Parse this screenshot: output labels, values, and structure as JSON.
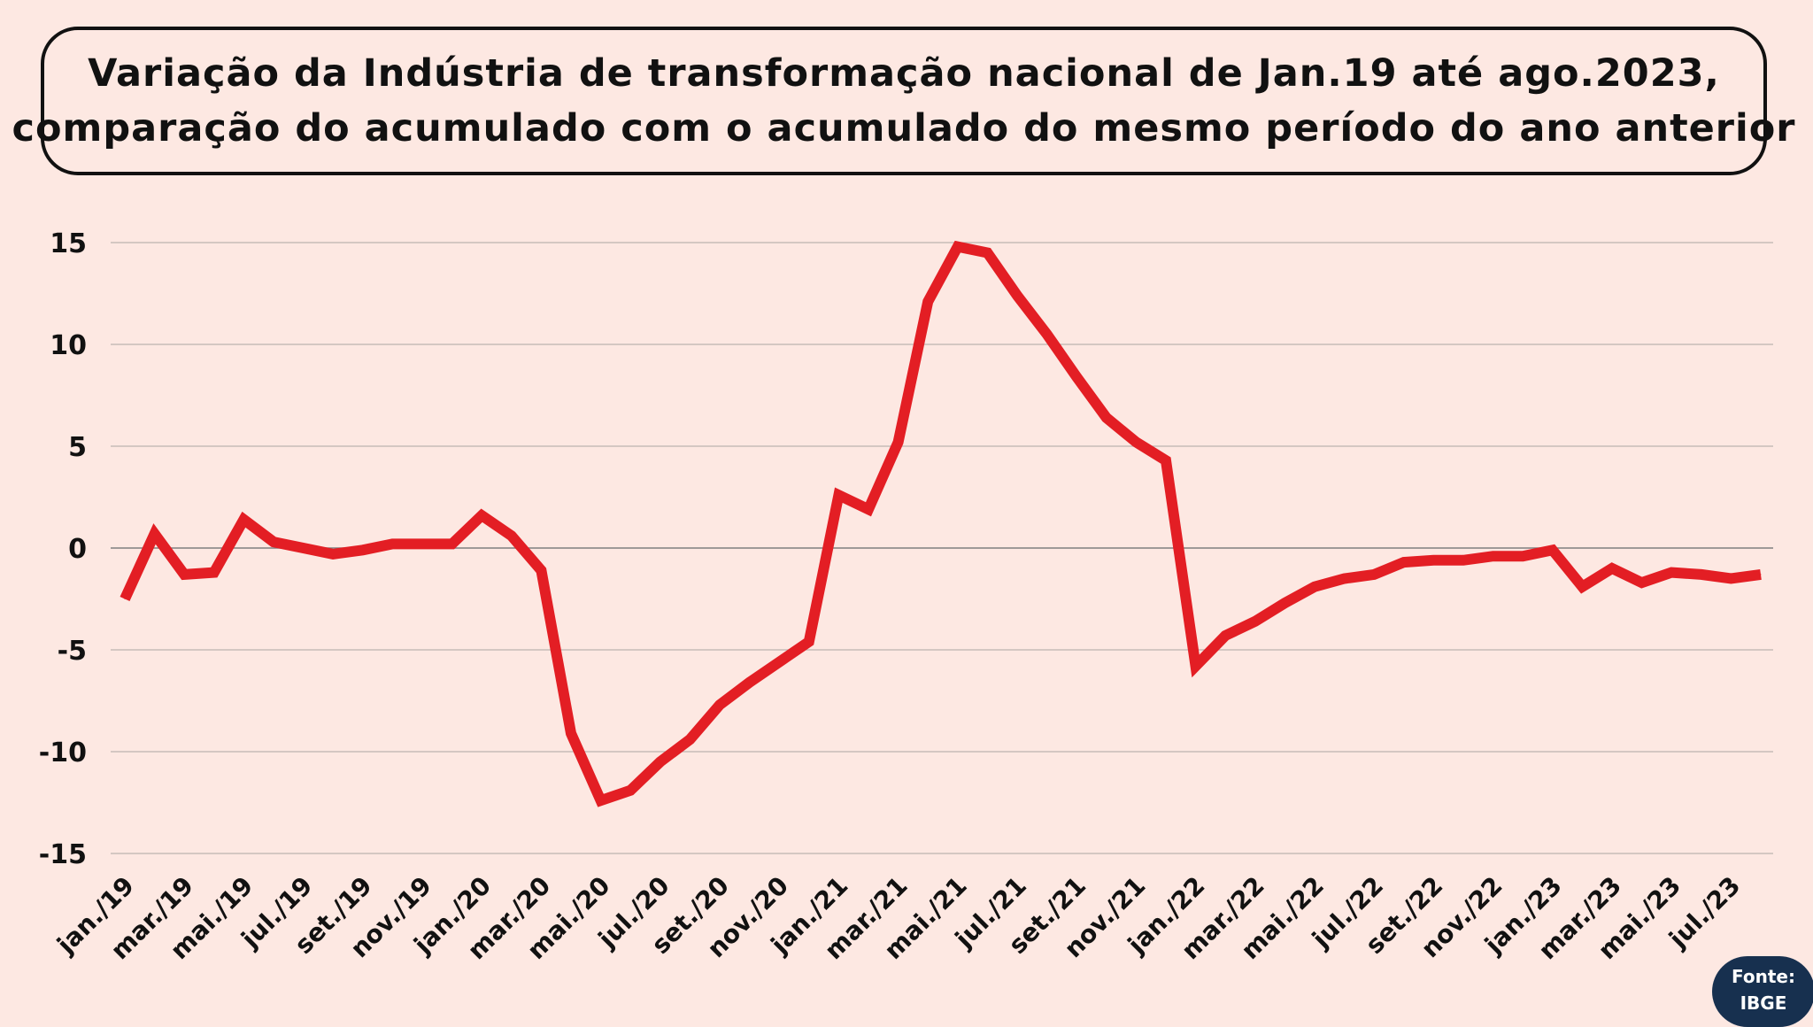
{
  "title_lines": [
    "Variação da Indústria de transformação nacional de Jan.19 até ago.2023,",
    "comparação do acumulado com o acumulado do mesmo período do ano anterior"
  ],
  "source": {
    "line1": "Fonte:",
    "line2": "IBGE"
  },
  "colors": {
    "background": "#fde8e2",
    "line": "#e31e24",
    "grid": "#bdb3b0",
    "zero_line": "#7f7f7f",
    "badge": "#17304f"
  },
  "chart_data": {
    "type": "line",
    "y_ticks": [
      15,
      10,
      5,
      0,
      -5,
      -10,
      -15
    ],
    "ylim": [
      -15,
      15
    ],
    "grid": true,
    "x_tick_labels": [
      "jan./19",
      "mar./19",
      "mai./19",
      "jul./19",
      "set./19",
      "nov./19",
      "jan./20",
      "mar./20",
      "mai./20",
      "jul./20",
      "set./20",
      "nov./20",
      "jan./21",
      "mar./21",
      "mai./21",
      "jul./21",
      "set./21",
      "nov./21",
      "jan./22",
      "mar./22",
      "mai./22",
      "jul./22",
      "set./22",
      "nov./22",
      "jan./23",
      "mar./23",
      "mai./23",
      "jul./23"
    ],
    "x": [
      "jan./19",
      "fev./19",
      "mar./19",
      "abr./19",
      "mai./19",
      "jun./19",
      "jul./19",
      "ago./19",
      "set./19",
      "out./19",
      "nov./19",
      "dez./19",
      "jan./20",
      "fev./20",
      "mar./20",
      "abr./20",
      "mai./20",
      "jun./20",
      "jul./20",
      "ago./20",
      "set./20",
      "out./20",
      "nov./20",
      "dez./20",
      "jan./21",
      "fev./21",
      "mar./21",
      "abr./21",
      "mai./21",
      "jun./21",
      "jul./21",
      "ago./21",
      "set./21",
      "out./21",
      "nov./21",
      "dez./21",
      "jan./22",
      "fev./22",
      "mar./22",
      "abr./22",
      "mai./22",
      "jun./22",
      "jul./22",
      "ago./22",
      "set./22",
      "out./22",
      "nov./22",
      "dez./22",
      "jan./23",
      "fev./23",
      "mar./23",
      "abr./23",
      "mai./23",
      "jun./23",
      "jul./23",
      "ago./23"
    ],
    "series": [
      {
        "values": [
          -2.5,
          0.7,
          -1.3,
          -1.2,
          1.4,
          0.3,
          0.0,
          -0.3,
          -0.1,
          0.2,
          0.2,
          0.2,
          1.6,
          0.6,
          -1.1,
          -9.1,
          -12.4,
          -11.9,
          -10.5,
          -9.4,
          -7.7,
          -6.6,
          -5.6,
          -4.6,
          2.6,
          1.9,
          5.2,
          12.1,
          14.8,
          14.5,
          12.4,
          10.5,
          8.4,
          6.4,
          5.2,
          4.3,
          -5.8,
          -4.3,
          -3.6,
          -2.7,
          -1.9,
          -1.5,
          -1.3,
          -0.7,
          -0.6,
          -0.6,
          -0.4,
          -0.4,
          -0.1,
          -1.9,
          -1.0,
          -1.7,
          -1.2,
          -1.3,
          -1.5,
          -1.3
        ]
      }
    ]
  }
}
